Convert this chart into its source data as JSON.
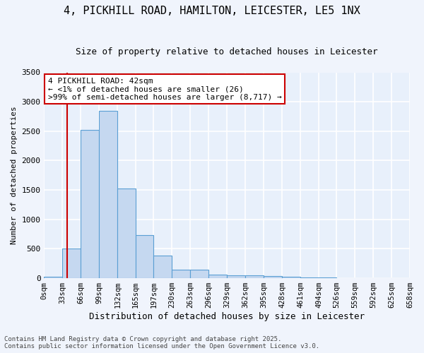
{
  "title_line1": "4, PICKHILL ROAD, HAMILTON, LEICESTER, LE5 1NX",
  "title_line2": "Size of property relative to detached houses in Leicester",
  "xlabel": "Distribution of detached houses by size in Leicester",
  "ylabel": "Number of detached properties",
  "bin_edges": [
    0,
    33,
    66,
    99,
    132,
    165,
    197,
    230,
    263,
    296,
    329,
    362,
    395,
    428,
    461,
    494,
    526,
    559,
    592,
    625,
    658
  ],
  "bar_heights": [
    26,
    500,
    2520,
    2840,
    1530,
    730,
    390,
    150,
    150,
    65,
    55,
    50,
    35,
    20,
    10,
    8,
    5,
    3,
    2,
    1
  ],
  "bar_color": "#c5d8f0",
  "bar_edge_color": "#5a9fd4",
  "background_color": "#e8f0fb",
  "grid_color": "#ffffff",
  "fig_background": "#f0f4fc",
  "red_line_x": 42,
  "ylim": [
    0,
    3500
  ],
  "yticks": [
    0,
    500,
    1000,
    1500,
    2000,
    2500,
    3000,
    3500
  ],
  "annotation_title": "4 PICKHILL ROAD: 42sqm",
  "annotation_line1": "← <1% of detached houses are smaller (26)",
  "annotation_line2": ">99% of semi-detached houses are larger (8,717) →",
  "annotation_box_color": "#ffffff",
  "annotation_border_color": "#cc0000",
  "footer_line1": "Contains HM Land Registry data © Crown copyright and database right 2025.",
  "footer_line2": "Contains public sector information licensed under the Open Government Licence v3.0.",
  "tick_labels": [
    "0sqm",
    "33sqm",
    "66sqm",
    "99sqm",
    "132sqm",
    "165sqm",
    "197sqm",
    "230sqm",
    "263sqm",
    "296sqm",
    "329sqm",
    "362sqm",
    "395sqm",
    "428sqm",
    "461sqm",
    "494sqm",
    "526sqm",
    "559sqm",
    "592sqm",
    "625sqm",
    "658sqm"
  ],
  "title1_fontsize": 11,
  "title2_fontsize": 9,
  "xlabel_fontsize": 9,
  "ylabel_fontsize": 8,
  "tick_fontsize": 7.5,
  "ytick_fontsize": 8,
  "annotation_fontsize": 8,
  "footer_fontsize": 6.5
}
